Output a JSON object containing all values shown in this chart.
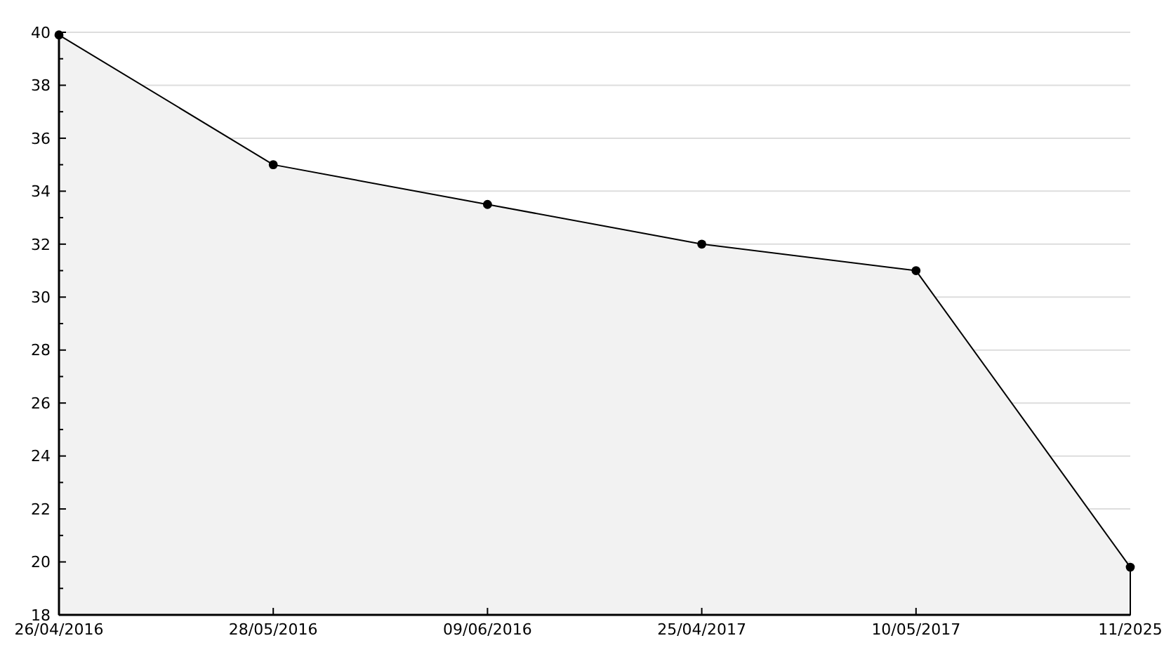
{
  "chart_data": {
    "type": "area",
    "categories": [
      "26/04/2016",
      "28/05/2016",
      "09/06/2016",
      "25/04/2017",
      "10/05/2017",
      "11/2025"
    ],
    "series": [
      {
        "color": "#f2f2f2",
        "values": [
          39.9,
          35,
          33.5,
          32,
          31,
          19.8
        ]
      }
    ],
    "ylim": [
      18,
      40
    ],
    "yticks": [
      18,
      {
        "value": 19,
        "label": null
      },
      20,
      {
        "value": 21,
        "label": null
      },
      22,
      {
        "value": 23,
        "label": null
      },
      24,
      {
        "value": 25,
        "label": null
      },
      26,
      {
        "value": 27,
        "label": null
      },
      28,
      {
        "value": 29,
        "label": null
      },
      30,
      {
        "value": 31,
        "label": null
      },
      32,
      {
        "value": 33,
        "label": null
      },
      34,
      {
        "value": 35,
        "label": null
      },
      36,
      {
        "value": 37,
        "label": null
      },
      38,
      {
        "value": 39,
        "label": null
      },
      40
    ],
    "grid": "y",
    "marker": "circle",
    "line_style": "solid"
  }
}
